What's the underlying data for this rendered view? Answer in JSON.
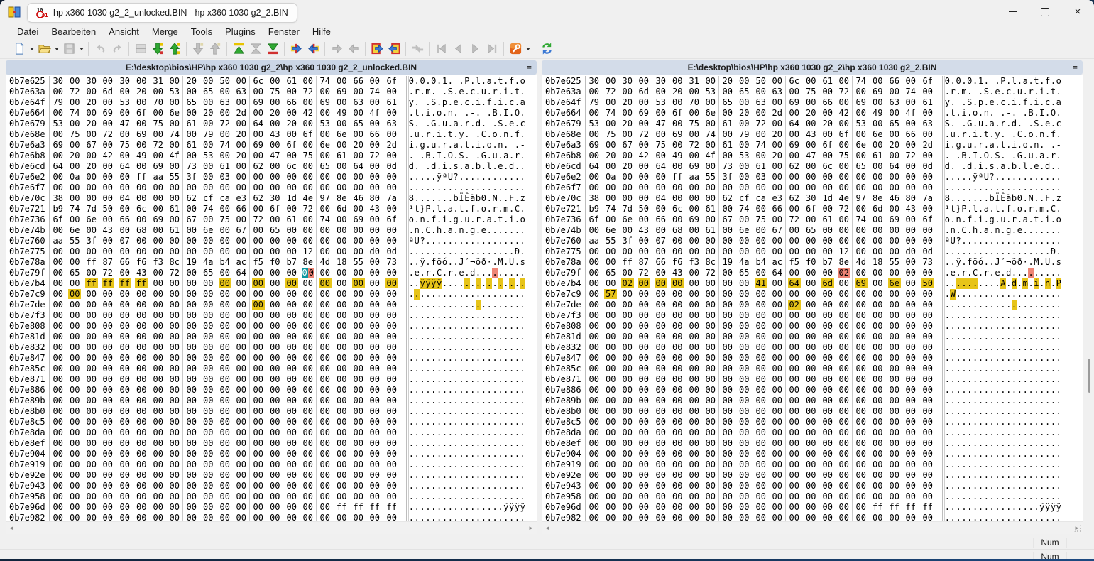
{
  "window": {
    "tab_title": "hp x360 1030 g2_2_unlocked.BIN - hp x360 1030 g2_2.BIN",
    "controls": [
      {
        "name": "minimize-button"
      },
      {
        "name": "maximize-button"
      },
      {
        "name": "close-button",
        "glyph": "×"
      }
    ]
  },
  "menu": {
    "items": [
      "Datei",
      "Bearbeiten",
      "Ansicht",
      "Merge",
      "Tools",
      "Plugins",
      "Fenster",
      "Hilfe"
    ]
  },
  "toolbar": {
    "groups": [
      [
        {
          "name": "new-file",
          "enabled": true,
          "dropdown": true
        },
        {
          "name": "open",
          "enabled": true,
          "dropdown": true
        },
        {
          "name": "save",
          "enabled": false,
          "dropdown": true
        }
      ],
      [
        {
          "name": "undo",
          "enabled": false
        },
        {
          "name": "redo",
          "enabled": false
        }
      ],
      [
        {
          "name": "view-split",
          "enabled": false
        },
        {
          "name": "next-diff",
          "enabled": true
        },
        {
          "name": "prev-diff",
          "enabled": true
        }
      ],
      [
        {
          "name": "next-conflict",
          "enabled": false
        },
        {
          "name": "prev-conflict",
          "enabled": false
        }
      ],
      [
        {
          "name": "first-diff",
          "enabled": true
        },
        {
          "name": "current-diff",
          "enabled": false
        },
        {
          "name": "last-diff",
          "enabled": true
        }
      ],
      [
        {
          "name": "copy-right",
          "enabled": true
        },
        {
          "name": "copy-left",
          "enabled": true
        }
      ],
      [
        {
          "name": "copy-right-next",
          "enabled": false
        },
        {
          "name": "copy-left-next",
          "enabled": false
        }
      ],
      [
        {
          "name": "copy-all-right",
          "enabled": true
        },
        {
          "name": "copy-all-left",
          "enabled": true
        }
      ],
      [
        {
          "name": "auto-merge",
          "enabled": false
        }
      ],
      [
        {
          "name": "first-file",
          "enabled": false
        },
        {
          "name": "prev-file",
          "enabled": false
        },
        {
          "name": "next-file",
          "enabled": false
        },
        {
          "name": "last-file",
          "enabled": false
        }
      ],
      [
        {
          "name": "options",
          "enabled": true,
          "dropdown": true
        }
      ],
      [
        {
          "name": "refresh",
          "enabled": true
        }
      ]
    ]
  },
  "colors": {
    "diff_yellow": "#e7c419",
    "diff_salmon": "#ee8474",
    "cursor_teal": "#0d96a0",
    "header_blue": "#cbd6e6"
  },
  "panes": [
    {
      "header": "E:\\desktop\\bios\\HP\\hp x360 1030 g2_2\\hp x360 1030 g2_2_unlocked.BIN",
      "menu_glyph": "≡",
      "rows": [
        {
          "a": "0b7e625",
          "b": "30 00 30 00 30 00 31 00 20 00 50 00 6c 00 61 00 74 00 66 00 6f",
          "t": "0.0.0.1. .P.l.a.t.f.o"
        },
        {
          "a": "0b7e63a",
          "b": "00 72 00 6d 00 20 00 53 00 65 00 63 00 75 00 72 00 69 00 74 00",
          "t": ".r.m. .S.e.c.u.r.i.t."
        },
        {
          "a": "0b7e64f",
          "b": "79 00 20 00 53 00 70 00 65 00 63 00 69 00 66 00 69 00 63 00 61",
          "t": "y. .S.p.e.c.i.f.i.c.a"
        },
        {
          "a": "0b7e664",
          "b": "00 74 00 69 00 6f 00 6e 00 20 00 2d 00 20 00 42 00 49 00 4f 00",
          "t": ".t.i.o.n. .-. .B.I.O."
        },
        {
          "a": "0b7e679",
          "b": "53 00 20 00 47 00 75 00 61 00 72 00 64 00 20 00 53 00 65 00 63",
          "t": "S. .G.u.a.r.d. .S.e.c"
        },
        {
          "a": "0b7e68e",
          "b": "00 75 00 72 00 69 00 74 00 79 00 20 00 43 00 6f 00 6e 00 66 00",
          "t": ".u.r.i.t.y. .C.o.n.f."
        },
        {
          "a": "0b7e6a3",
          "b": "69 00 67 00 75 00 72 00 61 00 74 00 69 00 6f 00 6e 00 20 00 2d",
          "t": "i.g.u.r.a.t.i.o.n. .-"
        },
        {
          "a": "0b7e6b8",
          "b": "00 20 00 42 00 49 00 4f 00 53 00 20 00 47 00 75 00 61 00 72 00",
          "t": ". .B.I.O.S. .G.u.a.r."
        },
        {
          "a": "0b7e6cd",
          "b": "64 00 20 00 64 00 69 00 73 00 61 00 62 00 6c 00 65 00 64 00 0d",
          "t": "d. .d.i.s.a.b.l.e.d.."
        },
        {
          "a": "0b7e6e2",
          "b": "00 0a 00 00 00 ff aa 55 3f 00 03 00 00 00 00 00 00 00 00 00 00",
          "t": ".....ÿªU?............"
        },
        {
          "a": "0b7e6f7",
          "b": "00 00 00 00 00 00 00 00 00 00 00 00 00 00 00 00 00 00 00 00 00",
          "t": "....................."
        },
        {
          "a": "0b7e70c",
          "b": "38 00 00 00 04 00 00 00 62 cf ca e3 62 30 1d 4e 97 8e 46 80 7a",
          "t": "8.......bÏÊãb0.N..F.z"
        },
        {
          "a": "0b7e721",
          "b": "b9 74 7d 50 00 6c 00 61 00 74 00 66 00 6f 00 72 00 6d 00 43 00",
          "t": "¹t}P.l.a.t.f.o.r.m.C."
        },
        {
          "a": "0b7e736",
          "b": "6f 00 6e 00 66 00 69 00 67 00 75 00 72 00 61 00 74 00 69 00 6f",
          "t": "o.n.f.i.g.u.r.a.t.i.o"
        },
        {
          "a": "0b7e74b",
          "b": "00 6e 00 43 00 68 00 61 00 6e 00 67 00 65 00 00 00 00 00 00 00",
          "t": ".n.C.h.a.n.g.e......."
        },
        {
          "a": "0b7e760",
          "b": "aa 55 3f 00 07 00 00 00 00 00 00 00 00 00 00 00 00 00 00 00 00",
          "t": "ªU?.................."
        },
        {
          "a": "0b7e775",
          "b": "00 00 00 00 00 00 00 00 00 00 00 00 00 00 00 12 00 00 00 d0 0d",
          "t": "...................Ð."
        },
        {
          "a": "0b7e78a",
          "b": "00 00 ff 87 66 f6 f3 8c 19 4a b4 ac f5 f0 b7 8e 4d 18 55 00 73",
          "t": "..ÿ.föó..J´¬õð·.M.U.s"
        },
        {
          "a": "0b7e79f",
          "b": "00 65 00 72 00 43 00 72 00 65 00 64 00 00 00 00 00 00 00 00 00",
          "t": ".e.r.C.r.e.d.........",
          "h": {
            "15": "c"
          }
        },
        {
          "a": "0b7e7b4",
          "b": "00 00 ff ff ff ff 00 00 00 00 00 00 00 00 00 00 00 00 00 00 00",
          "t": "..ÿÿÿÿ...............",
          "h": {
            "2": "y",
            "3": "y",
            "4": "y",
            "5": "y",
            "10": "y",
            "12": "y",
            "14": "y",
            "16": "y",
            "18": "y",
            "20": "y"
          }
        },
        {
          "a": "0b7e7c9",
          "b": "00 00 00 00 00 00 00 00 00 00 00 00 00 00 00 00 00 00 00 00 00",
          "t": ".....................",
          "h": {
            "1": "y"
          }
        },
        {
          "a": "0b7e7de",
          "b": "00 00 00 00 00 00 00 00 00 00 00 00 00 00 00 00 00 00 00 00 00",
          "t": ".....................",
          "h": {
            "12": "y"
          }
        },
        {
          "a": "0b7e7f3",
          "b": "00 00 00 00 00 00 00 00 00 00 00 00 00 00 00 00 00 00 00 00 00",
          "t": "....................."
        },
        {
          "a": "0b7e808",
          "b": "00 00 00 00 00 00 00 00 00 00 00 00 00 00 00 00 00 00 00 00 00",
          "t": "....................."
        },
        {
          "a": "0b7e81d",
          "b": "00 00 00 00 00 00 00 00 00 00 00 00 00 00 00 00 00 00 00 00 00",
          "t": "....................."
        },
        {
          "a": "0b7e832",
          "b": "00 00 00 00 00 00 00 00 00 00 00 00 00 00 00 00 00 00 00 00 00",
          "t": "....................."
        },
        {
          "a": "0b7e847",
          "b": "00 00 00 00 00 00 00 00 00 00 00 00 00 00 00 00 00 00 00 00 00",
          "t": "....................."
        },
        {
          "a": "0b7e85c",
          "b": "00 00 00 00 00 00 00 00 00 00 00 00 00 00 00 00 00 00 00 00 00",
          "t": "....................."
        },
        {
          "a": "0b7e871",
          "b": "00 00 00 00 00 00 00 00 00 00 00 00 00 00 00 00 00 00 00 00 00",
          "t": "....................."
        },
        {
          "a": "0b7e886",
          "b": "00 00 00 00 00 00 00 00 00 00 00 00 00 00 00 00 00 00 00 00 00",
          "t": "....................."
        },
        {
          "a": "0b7e89b",
          "b": "00 00 00 00 00 00 00 00 00 00 00 00 00 00 00 00 00 00 00 00 00",
          "t": "....................."
        },
        {
          "a": "0b7e8b0",
          "b": "00 00 00 00 00 00 00 00 00 00 00 00 00 00 00 00 00 00 00 00 00",
          "t": "....................."
        },
        {
          "a": "0b7e8c5",
          "b": "00 00 00 00 00 00 00 00 00 00 00 00 00 00 00 00 00 00 00 00 00",
          "t": "....................."
        },
        {
          "a": "0b7e8da",
          "b": "00 00 00 00 00 00 00 00 00 00 00 00 00 00 00 00 00 00 00 00 00",
          "t": "....................."
        },
        {
          "a": "0b7e8ef",
          "b": "00 00 00 00 00 00 00 00 00 00 00 00 00 00 00 00 00 00 00 00 00",
          "t": "....................."
        },
        {
          "a": "0b7e904",
          "b": "00 00 00 00 00 00 00 00 00 00 00 00 00 00 00 00 00 00 00 00 00",
          "t": "....................."
        },
        {
          "a": "0b7e919",
          "b": "00 00 00 00 00 00 00 00 00 00 00 00 00 00 00 00 00 00 00 00 00",
          "t": "....................."
        },
        {
          "a": "0b7e92e",
          "b": "00 00 00 00 00 00 00 00 00 00 00 00 00 00 00 00 00 00 00 00 00",
          "t": "....................."
        },
        {
          "a": "0b7e943",
          "b": "00 00 00 00 00 00 00 00 00 00 00 00 00 00 00 00 00 00 00 00 00",
          "t": "....................."
        },
        {
          "a": "0b7e958",
          "b": "00 00 00 00 00 00 00 00 00 00 00 00 00 00 00 00 00 00 00 00 00",
          "t": "....................."
        },
        {
          "a": "0b7e96d",
          "b": "00 00 00 00 00 00 00 00 00 00 00 00 00 00 00 00 00 ff ff ff ff",
          "t": ".................ÿÿÿÿ"
        },
        {
          "a": "0b7e982",
          "b": "00 00 00 00 00 00 00 00 00 00 00 00 00 00 00 00 00 00 00 00 00",
          "t": "....................."
        }
      ]
    },
    {
      "header": "E:\\desktop\\bios\\HP\\hp x360 1030 g2_2\\hp x360 1030 g2_2.BIN",
      "menu_glyph": "≡",
      "rows": [
        {
          "a": "0b7e625",
          "b": "30 00 30 00 30 00 31 00 20 00 50 00 6c 00 61 00 74 00 66 00 6f",
          "t": "0.0.0.1. .P.l.a.t.f.o"
        },
        {
          "a": "0b7e63a",
          "b": "00 72 00 6d 00 20 00 53 00 65 00 63 00 75 00 72 00 69 00 74 00",
          "t": ".r.m. .S.e.c.u.r.i.t."
        },
        {
          "a": "0b7e64f",
          "b": "79 00 20 00 53 00 70 00 65 00 63 00 69 00 66 00 69 00 63 00 61",
          "t": "y. .S.p.e.c.i.f.i.c.a"
        },
        {
          "a": "0b7e664",
          "b": "00 74 00 69 00 6f 00 6e 00 20 00 2d 00 20 00 42 00 49 00 4f 00",
          "t": ".t.i.o.n. .-. .B.I.O."
        },
        {
          "a": "0b7e679",
          "b": "53 00 20 00 47 00 75 00 61 00 72 00 64 00 20 00 53 00 65 00 63",
          "t": "S. .G.u.a.r.d. .S.e.c"
        },
        {
          "a": "0b7e68e",
          "b": "00 75 00 72 00 69 00 74 00 79 00 20 00 43 00 6f 00 6e 00 66 00",
          "t": ".u.r.i.t.y. .C.o.n.f."
        },
        {
          "a": "0b7e6a3",
          "b": "69 00 67 00 75 00 72 00 61 00 74 00 69 00 6f 00 6e 00 20 00 2d",
          "t": "i.g.u.r.a.t.i.o.n. .-"
        },
        {
          "a": "0b7e6b8",
          "b": "00 20 00 42 00 49 00 4f 00 53 00 20 00 47 00 75 00 61 00 72 00",
          "t": ". .B.I.O.S. .G.u.a.r."
        },
        {
          "a": "0b7e6cd",
          "b": "64 00 20 00 64 00 69 00 73 00 61 00 62 00 6c 00 65 00 64 00 0d",
          "t": "d. .d.i.s.a.b.l.e.d.."
        },
        {
          "a": "0b7e6e2",
          "b": "00 0a 00 00 00 ff aa 55 3f 00 03 00 00 00 00 00 00 00 00 00 00",
          "t": ".....ÿªU?............"
        },
        {
          "a": "0b7e6f7",
          "b": "00 00 00 00 00 00 00 00 00 00 00 00 00 00 00 00 00 00 00 00 00",
          "t": "....................."
        },
        {
          "a": "0b7e70c",
          "b": "38 00 00 00 04 00 00 00 62 cf ca e3 62 30 1d 4e 97 8e 46 80 7a",
          "t": "8.......bÏÊãb0.N..F.z"
        },
        {
          "a": "0b7e721",
          "b": "b9 74 7d 50 00 6c 00 61 00 74 00 66 00 6f 00 72 00 6d 00 43 00",
          "t": "¹t}P.l.a.t.f.o.r.m.C."
        },
        {
          "a": "0b7e736",
          "b": "6f 00 6e 00 66 00 69 00 67 00 75 00 72 00 61 00 74 00 69 00 6f",
          "t": "o.n.f.i.g.u.r.a.t.i.o"
        },
        {
          "a": "0b7e74b",
          "b": "00 6e 00 43 00 68 00 61 00 6e 00 67 00 65 00 00 00 00 00 00 00",
          "t": ".n.C.h.a.n.g.e......."
        },
        {
          "a": "0b7e760",
          "b": "aa 55 3f 00 07 00 00 00 00 00 00 00 00 00 00 00 00 00 00 00 00",
          "t": "ªU?.................."
        },
        {
          "a": "0b7e775",
          "b": "00 00 00 00 00 00 00 00 00 00 00 00 00 00 00 12 00 00 00 d0 0d",
          "t": "...................Ð."
        },
        {
          "a": "0b7e78a",
          "b": "00 00 ff 87 66 f6 f3 8c 19 4a b4 ac f5 f0 b7 8e 4d 18 55 00 73",
          "t": "..ÿ.föó..J´¬õð·.M.U.s"
        },
        {
          "a": "0b7e79f",
          "b": "00 65 00 72 00 43 00 72 00 65 00 64 00 00 00 02 00 00 00 00 00",
          "t": ".e.r.C.r.e.d.........",
          "h": {
            "15": "r"
          }
        },
        {
          "a": "0b7e7b4",
          "b": "00 00 02 00 00 00 00 00 00 00 41 00 64 00 6d 00 69 00 6e 00 50",
          "t": "..........A.d.m.i.n.P",
          "h": {
            "2": "y",
            "3": "y",
            "4": "y",
            "5": "y",
            "10": "y",
            "12": "y",
            "14": "y",
            "16": "y",
            "18": "y",
            "20": "y"
          }
        },
        {
          "a": "0b7e7c9",
          "b": "00 57 00 00 00 00 00 00 00 00 00 00 00 00 00 00 00 00 00 00 00",
          "t": ".W...................",
          "h": {
            "1": "y"
          }
        },
        {
          "a": "0b7e7de",
          "b": "00 00 00 00 00 00 00 00 00 00 00 00 02 00 00 00 00 00 00 00 00",
          "t": ".....................",
          "h": {
            "12": "y"
          }
        },
        {
          "a": "0b7e7f3",
          "b": "00 00 00 00 00 00 00 00 00 00 00 00 00 00 00 00 00 00 00 00 00",
          "t": "....................."
        },
        {
          "a": "0b7e808",
          "b": "00 00 00 00 00 00 00 00 00 00 00 00 00 00 00 00 00 00 00 00 00",
          "t": "....................."
        },
        {
          "a": "0b7e81d",
          "b": "00 00 00 00 00 00 00 00 00 00 00 00 00 00 00 00 00 00 00 00 00",
          "t": "....................."
        },
        {
          "a": "0b7e832",
          "b": "00 00 00 00 00 00 00 00 00 00 00 00 00 00 00 00 00 00 00 00 00",
          "t": "....................."
        },
        {
          "a": "0b7e847",
          "b": "00 00 00 00 00 00 00 00 00 00 00 00 00 00 00 00 00 00 00 00 00",
          "t": "....................."
        },
        {
          "a": "0b7e85c",
          "b": "00 00 00 00 00 00 00 00 00 00 00 00 00 00 00 00 00 00 00 00 00",
          "t": "....................."
        },
        {
          "a": "0b7e871",
          "b": "00 00 00 00 00 00 00 00 00 00 00 00 00 00 00 00 00 00 00 00 00",
          "t": "....................."
        },
        {
          "a": "0b7e886",
          "b": "00 00 00 00 00 00 00 00 00 00 00 00 00 00 00 00 00 00 00 00 00",
          "t": "....................."
        },
        {
          "a": "0b7e89b",
          "b": "00 00 00 00 00 00 00 00 00 00 00 00 00 00 00 00 00 00 00 00 00",
          "t": "....................."
        },
        {
          "a": "0b7e8b0",
          "b": "00 00 00 00 00 00 00 00 00 00 00 00 00 00 00 00 00 00 00 00 00",
          "t": "....................."
        },
        {
          "a": "0b7e8c5",
          "b": "00 00 00 00 00 00 00 00 00 00 00 00 00 00 00 00 00 00 00 00 00",
          "t": "....................."
        },
        {
          "a": "0b7e8da",
          "b": "00 00 00 00 00 00 00 00 00 00 00 00 00 00 00 00 00 00 00 00 00",
          "t": "....................."
        },
        {
          "a": "0b7e8ef",
          "b": "00 00 00 00 00 00 00 00 00 00 00 00 00 00 00 00 00 00 00 00 00",
          "t": "....................."
        },
        {
          "a": "0b7e904",
          "b": "00 00 00 00 00 00 00 00 00 00 00 00 00 00 00 00 00 00 00 00 00",
          "t": "....................."
        },
        {
          "a": "0b7e919",
          "b": "00 00 00 00 00 00 00 00 00 00 00 00 00 00 00 00 00 00 00 00 00",
          "t": "....................."
        },
        {
          "a": "0b7e92e",
          "b": "00 00 00 00 00 00 00 00 00 00 00 00 00 00 00 00 00 00 00 00 00",
          "t": "....................."
        },
        {
          "a": "0b7e943",
          "b": "00 00 00 00 00 00 00 00 00 00 00 00 00 00 00 00 00 00 00 00 00",
          "t": "....................."
        },
        {
          "a": "0b7e958",
          "b": "00 00 00 00 00 00 00 00 00 00 00 00 00 00 00 00 00 00 00 00 00",
          "t": "....................."
        },
        {
          "a": "0b7e96d",
          "b": "00 00 00 00 00 00 00 00 00 00 00 00 00 00 00 00 00 ff ff ff ff",
          "t": ".................ÿÿÿÿ"
        },
        {
          "a": "0b7e982",
          "b": "00 00 00 00 00 00 00 00 00 00 00 00 00 00 00 00 00 00 00 00 00",
          "t": "....................."
        }
      ]
    }
  ],
  "status_bars": [
    {
      "num": "Num"
    },
    {
      "num": "Num"
    }
  ]
}
